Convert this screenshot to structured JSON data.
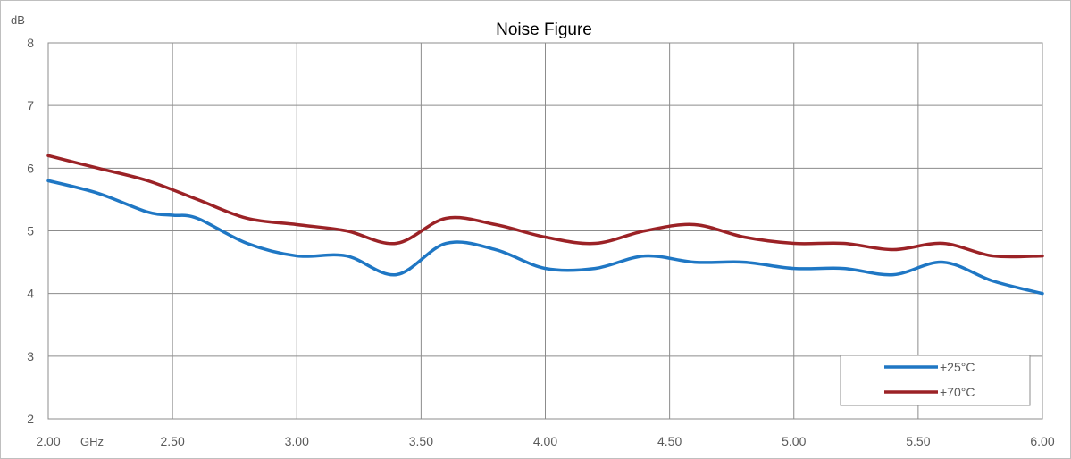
{
  "chart_data": {
    "type": "line",
    "title": "Noise Figure",
    "ylabel": "dB",
    "xlabel": "GHz",
    "xlim": [
      2.0,
      6.0
    ],
    "ylim": [
      2,
      8
    ],
    "x_ticks": [
      "2.00",
      "2.50",
      "3.00",
      "3.50",
      "4.00",
      "4.50",
      "5.00",
      "5.50",
      "6.00"
    ],
    "y_ticks": [
      "2",
      "3",
      "4",
      "5",
      "6",
      "7",
      "8"
    ],
    "grid": true,
    "legend_position": "bottom-right",
    "series": [
      {
        "name": "+25°C",
        "color": "#1f77c4",
        "x": [
          2.0,
          2.2,
          2.4,
          2.5,
          2.6,
          2.8,
          3.0,
          3.2,
          3.4,
          3.6,
          3.8,
          4.0,
          4.2,
          4.4,
          4.6,
          4.8,
          5.0,
          5.2,
          5.4,
          5.6,
          5.8,
          6.0
        ],
        "y": [
          5.8,
          5.6,
          5.3,
          5.25,
          5.2,
          4.8,
          4.6,
          4.6,
          4.3,
          4.8,
          4.7,
          4.4,
          4.4,
          4.6,
          4.5,
          4.5,
          4.4,
          4.4,
          4.3,
          4.5,
          4.2,
          4.0
        ]
      },
      {
        "name": "+70°C",
        "color": "#9b2226",
        "x": [
          2.0,
          2.2,
          2.4,
          2.6,
          2.8,
          3.0,
          3.2,
          3.4,
          3.6,
          3.8,
          4.0,
          4.2,
          4.4,
          4.6,
          4.8,
          5.0,
          5.2,
          5.4,
          5.6,
          5.8,
          6.0
        ],
        "y": [
          6.2,
          6.0,
          5.8,
          5.5,
          5.2,
          5.1,
          5.0,
          4.8,
          5.2,
          5.1,
          4.9,
          4.8,
          5.0,
          5.1,
          4.9,
          4.8,
          4.8,
          4.7,
          4.8,
          4.6,
          4.6
        ]
      }
    ]
  }
}
